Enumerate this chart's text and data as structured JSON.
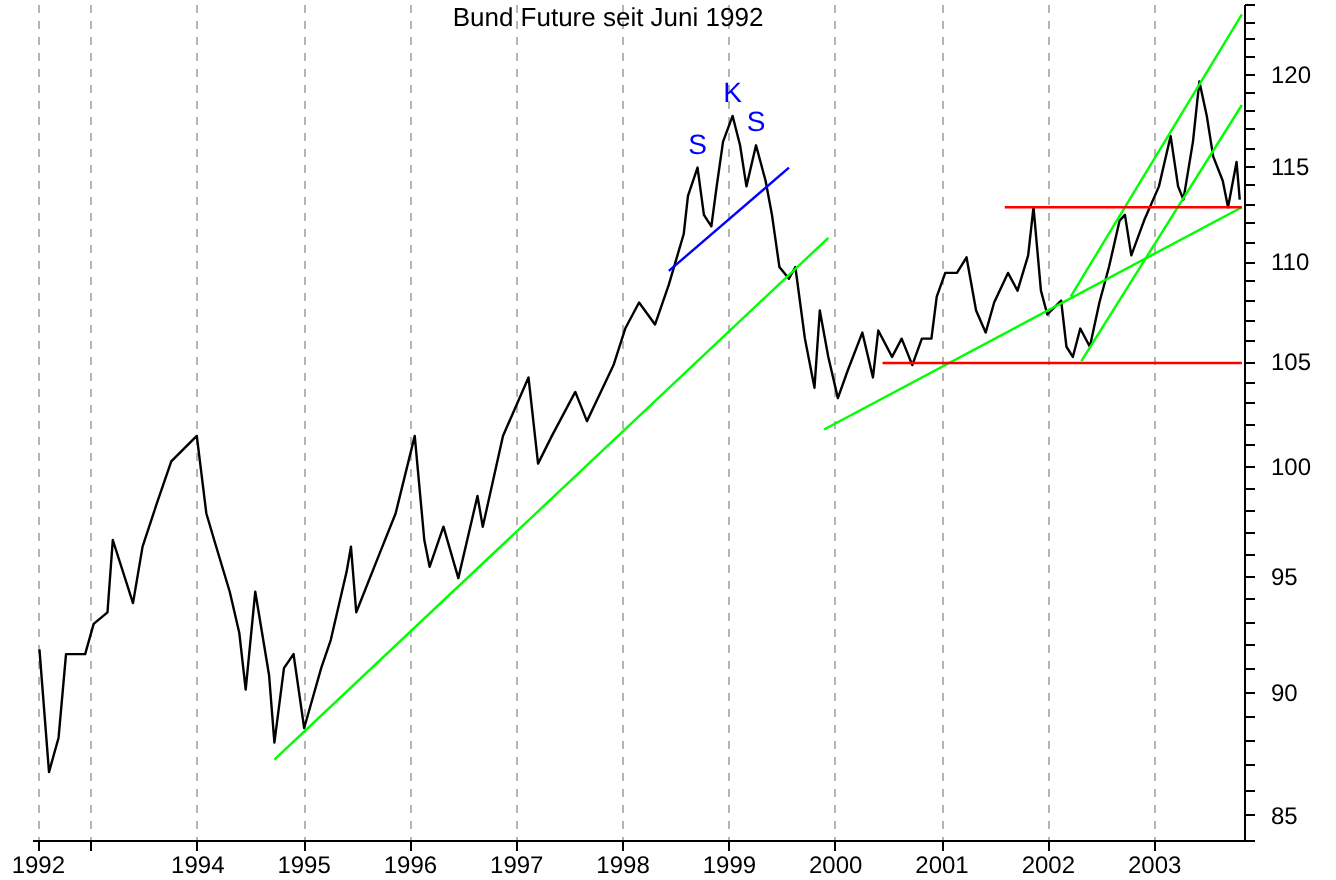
{
  "chart_data": {
    "type": "line",
    "title": "Bund Future seit Juni 1992",
    "log": "y",
    "grid": "x",
    "xlim": [
      1992.45,
      2003.85
    ],
    "xticks": [
      {
        "value": 1992.5,
        "label": "1992"
      },
      {
        "value": 1993,
        "label": null
      },
      1994,
      1995,
      1996,
      1997,
      1998,
      1999,
      2000,
      2001,
      2002,
      2003
    ],
    "ylim": [
      84,
      124
    ],
    "yticks": [
      {
        "value": 84,
        "label": null
      },
      85,
      {
        "value": 86,
        "label": null
      },
      {
        "value": 87,
        "label": null
      },
      {
        "value": 88,
        "label": null
      },
      {
        "value": 89,
        "label": null
      },
      90,
      {
        "value": 91,
        "label": null
      },
      {
        "value": 92,
        "label": null
      },
      {
        "value": 93,
        "label": null
      },
      {
        "value": 94,
        "label": null
      },
      95,
      {
        "value": 96,
        "label": null
      },
      {
        "value": 97,
        "label": null
      },
      {
        "value": 98,
        "label": null
      },
      {
        "value": 99,
        "label": null
      },
      100,
      {
        "value": 101,
        "label": null
      },
      {
        "value": 102,
        "label": null
      },
      {
        "value": 103,
        "label": null
      },
      {
        "value": 104,
        "label": null
      },
      105,
      {
        "value": 106,
        "label": null
      },
      {
        "value": 107,
        "label": null
      },
      {
        "value": 108,
        "label": null
      },
      {
        "value": 109,
        "label": null
      },
      110,
      {
        "value": 111,
        "label": null
      },
      {
        "value": 112,
        "label": null
      },
      {
        "value": 113,
        "label": null
      },
      {
        "value": 114,
        "label": null
      },
      115,
      {
        "value": 116,
        "label": null
      },
      {
        "value": 117,
        "label": null
      },
      {
        "value": 118,
        "label": null
      },
      {
        "value": 119,
        "label": null
      },
      120,
      {
        "value": 121,
        "label": null
      },
      {
        "value": 122,
        "label": null
      },
      {
        "value": 123,
        "label": null
      },
      {
        "value": 124,
        "label": null
      }
    ],
    "series": [
      {
        "color": "#000000",
        "x": [
          1992.52,
          1992.61,
          1992.7,
          1992.77,
          1992.95,
          1993.03,
          1993.16,
          1993.21,
          1993.4,
          1993.49,
          1993.62,
          1993.76,
          1994.0,
          1994.09,
          1994.17,
          1994.31,
          1994.4,
          1994.46,
          1994.55,
          1994.68,
          1994.73,
          1994.82,
          1994.91,
          1995.01,
          1995.17,
          1995.26,
          1995.41,
          1995.45,
          1995.5,
          1995.72,
          1995.87,
          1996.05,
          1996.14,
          1996.19,
          1996.32,
          1996.46,
          1996.64,
          1996.69,
          1996.88,
          1997.12,
          1997.21,
          1997.34,
          1997.56,
          1997.67,
          1997.8,
          1997.92,
          1998.03,
          1998.16,
          1998.31,
          1998.44,
          1998.58,
          1998.62,
          1998.71,
          1998.77,
          1998.84,
          1998.89,
          1998.95,
          1999.04,
          1999.11,
          1999.17,
          1999.26,
          1999.35,
          1999.41,
          1999.48,
          1999.57,
          1999.63,
          1999.72,
          1999.81,
          1999.86,
          1999.94,
          2000.03,
          2000.12,
          2000.26,
          2000.36,
          2000.41,
          2000.54,
          2000.63,
          2000.73,
          2000.82,
          2000.91,
          2000.96,
          2001.04,
          2001.15,
          2001.24,
          2001.33,
          2001.42,
          2001.5,
          2001.63,
          2001.72,
          2001.82,
          2001.87,
          2001.94,
          2002.0,
          2002.13,
          2002.18,
          2002.24,
          2002.31,
          2002.4,
          2002.49,
          2002.58,
          2002.68,
          2002.73,
          2002.79,
          2002.91,
          2003.05,
          2003.16,
          2003.23,
          2003.28,
          2003.37,
          2003.43,
          2003.5,
          2003.56,
          2003.65,
          2003.7,
          2003.78,
          2003.81
        ],
        "values": [
          91.8,
          86.7,
          88.1,
          91.6,
          91.6,
          92.9,
          93.4,
          96.6,
          93.8,
          96.3,
          98.2,
          100.2,
          101.4,
          97.8,
          96.5,
          94.3,
          92.5,
          90.1,
          94.3,
          90.7,
          87.9,
          91.0,
          91.6,
          88.5,
          91.0,
          92.2,
          95.2,
          96.3,
          93.4,
          96.0,
          97.8,
          101.4,
          96.6,
          95.4,
          97.2,
          94.9,
          98.6,
          97.2,
          101.4,
          104.2,
          100.1,
          101.4,
          103.5,
          102.1,
          103.5,
          104.8,
          106.6,
          107.9,
          106.8,
          108.8,
          111.4,
          113.4,
          114.9,
          112.4,
          111.8,
          113.9,
          116.3,
          117.7,
          116.1,
          113.9,
          116.1,
          114.2,
          112.4,
          109.7,
          109.1,
          109.7,
          106.1,
          103.7,
          107.5,
          105.2,
          103.2,
          104.5,
          106.4,
          104.2,
          106.5,
          105.2,
          106.1,
          104.8,
          106.1,
          106.1,
          108.2,
          109.4,
          109.4,
          110.2,
          107.5,
          106.4,
          107.9,
          109.4,
          108.5,
          110.3,
          112.8,
          108.5,
          107.3,
          108.0,
          105.7,
          105.2,
          106.6,
          105.7,
          107.9,
          109.7,
          112.1,
          112.4,
          110.3,
          112.1,
          113.9,
          116.6,
          113.9,
          113.2,
          116.3,
          119.6,
          117.7,
          115.5,
          114.2,
          112.8,
          115.2,
          113.2
        ]
      },
      {
        "color": "#00ff00",
        "x": [
          1994.73,
          1999.94
        ],
        "values": [
          87.2,
          111.2
        ]
      },
      {
        "color": "#0000ff",
        "x": [
          1998.44,
          1999.57
        ],
        "values": [
          109.5,
          114.9
        ]
      },
      {
        "color": "#00ff00",
        "x": [
          1999.9,
          2003.83
        ],
        "values": [
          101.7,
          112.8
        ]
      },
      {
        "color": "#00ff00",
        "x": [
          2002.32,
          2003.83
        ],
        "values": [
          105.0,
          118.3
        ]
      },
      {
        "color": "#00ff00",
        "x": [
          2002.22,
          2003.83
        ],
        "values": [
          108.2,
          123.4
        ]
      },
      {
        "color": "#ff0000",
        "x": [
          2000.45,
          2003.83
        ],
        "values": [
          104.9,
          104.9
        ]
      },
      {
        "color": "#ff0000",
        "x": [
          2001.6,
          2003.83
        ],
        "values": [
          112.8,
          112.8
        ]
      }
    ],
    "annotations": [
      {
        "text": "S",
        "x": 1998.71,
        "y": 114.9
      },
      {
        "text": "K",
        "x": 1999.04,
        "y": 117.7
      },
      {
        "text": "S",
        "x": 1999.26,
        "y": 116.1
      }
    ]
  }
}
